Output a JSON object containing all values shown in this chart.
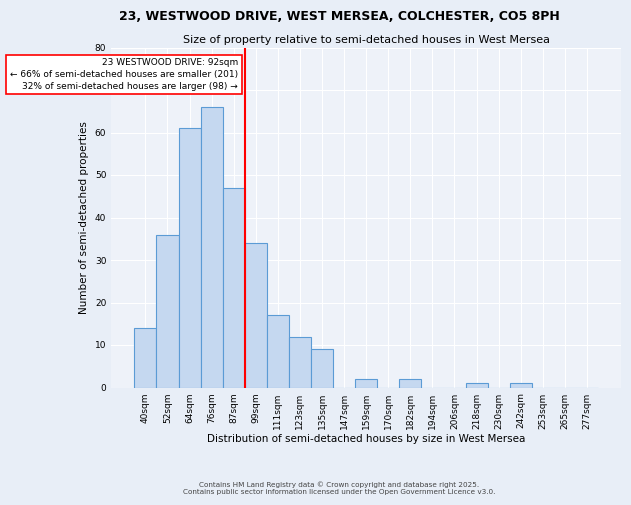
{
  "title": "23, WESTWOOD DRIVE, WEST MERSEA, COLCHESTER, CO5 8PH",
  "subtitle": "Size of property relative to semi-detached houses in West Mersea",
  "xlabel": "Distribution of semi-detached houses by size in West Mersea",
  "ylabel": "Number of semi-detached properties",
  "bin_labels": [
    "40sqm",
    "52sqm",
    "64sqm",
    "76sqm",
    "87sqm",
    "99sqm",
    "111sqm",
    "123sqm",
    "135sqm",
    "147sqm",
    "159sqm",
    "170sqm",
    "182sqm",
    "194sqm",
    "206sqm",
    "218sqm",
    "230sqm",
    "242sqm",
    "253sqm",
    "265sqm",
    "277sqm"
  ],
  "bar_values": [
    14,
    36,
    61,
    66,
    47,
    34,
    17,
    12,
    9,
    0,
    2,
    0,
    2,
    0,
    0,
    1,
    0,
    1,
    0,
    0,
    0
  ],
  "bar_color": "#c5d8f0",
  "bar_edge_color": "#5b9bd5",
  "red_line_x": 4.5,
  "red_line_label": "23 WESTWOOD DRIVE: 92sqm",
  "annotation_smaller": "← 66% of semi-detached houses are smaller (201)",
  "annotation_larger": "32% of semi-detached houses are larger (98) →",
  "ylim": [
    0,
    80
  ],
  "yticks": [
    0,
    10,
    20,
    30,
    40,
    50,
    60,
    70,
    80
  ],
  "background_color": "#e8eef7",
  "plot_bg_color": "#eef2f9",
  "grid_color": "#ffffff",
  "footer1": "Contains HM Land Registry data © Crown copyright and database right 2025.",
  "footer2": "Contains public sector information licensed under the Open Government Licence v3.0.",
  "title_fontsize": 9,
  "subtitle_fontsize": 8,
  "axis_label_fontsize": 7.5,
  "tick_fontsize": 6.5,
  "annotation_fontsize": 6.5
}
